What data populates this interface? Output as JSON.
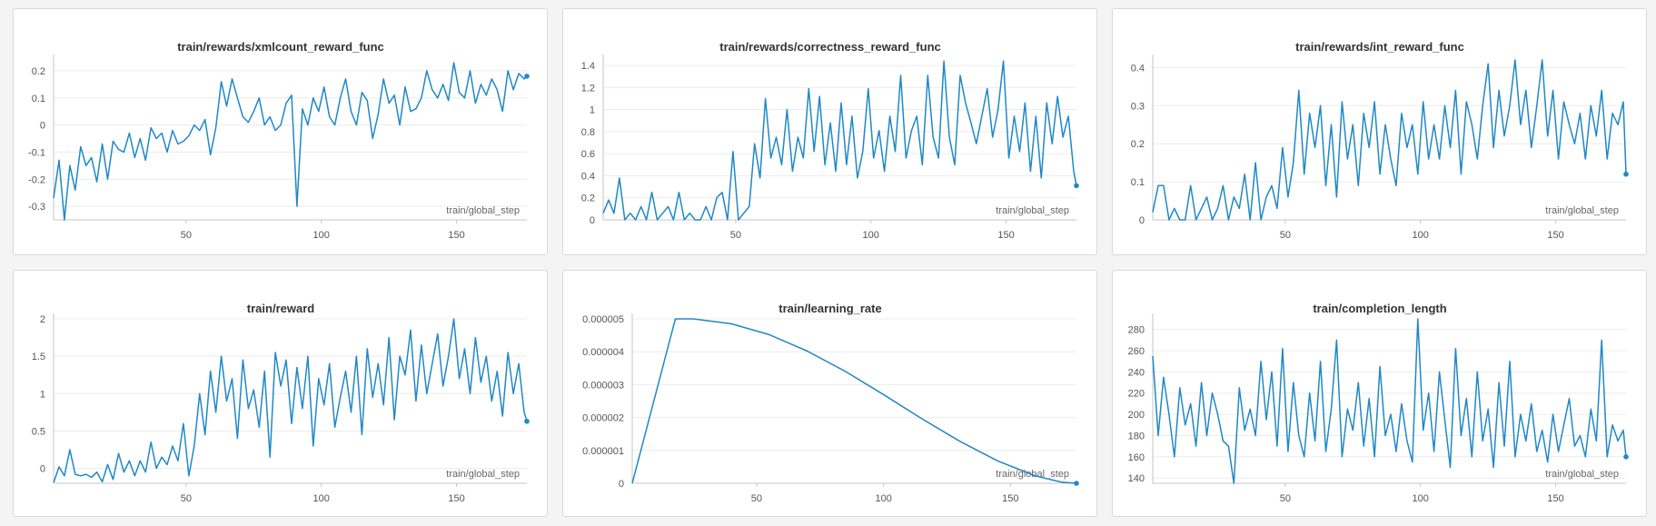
{
  "colors": {
    "line": "#1f88c7",
    "background": "#f4f4f4"
  },
  "chart_data": [
    {
      "type": "line",
      "title": "train/rewards/xmlcount_reward_func",
      "xlabel": "train/global_step",
      "xlim": [
        1,
        176
      ],
      "ylim": [
        -0.35,
        0.24
      ],
      "xticks": [
        50,
        100,
        150
      ],
      "yticks": [
        -0.3,
        -0.2,
        -0.1,
        0,
        0.1,
        0.2
      ],
      "ytick_labels": [
        "-0.3",
        "-0.2",
        "-0.1",
        "0",
        "0.1",
        "0.2"
      ],
      "grid": true,
      "legend": "none",
      "series": [
        {
          "x": [
            1,
            3,
            5,
            7,
            9,
            11,
            13,
            15,
            17,
            19,
            21,
            23,
            25,
            27,
            29,
            31,
            33,
            35,
            37,
            39,
            41,
            43,
            45,
            47,
            49,
            51,
            53,
            55,
            57,
            59,
            61,
            63,
            65,
            67,
            69,
            71,
            73,
            75,
            77,
            79,
            81,
            83,
            85,
            87,
            89,
            91,
            93,
            95,
            97,
            99,
            101,
            103,
            105,
            107,
            109,
            111,
            113,
            115,
            117,
            119,
            121,
            123,
            125,
            127,
            129,
            131,
            133,
            135,
            137,
            139,
            141,
            143,
            145,
            147,
            149,
            151,
            153,
            155,
            157,
            159,
            161,
            163,
            165,
            167,
            169,
            171,
            173,
            175,
            176
          ],
          "y": [
            -0.27,
            -0.13,
            -0.35,
            -0.15,
            -0.24,
            -0.08,
            -0.15,
            -0.12,
            -0.21,
            -0.07,
            -0.2,
            -0.06,
            -0.09,
            -0.1,
            -0.03,
            -0.12,
            -0.05,
            -0.13,
            -0.01,
            -0.05,
            -0.03,
            -0.1,
            -0.02,
            -0.07,
            -0.06,
            -0.04,
            0.0,
            -0.02,
            0.02,
            -0.11,
            -0.01,
            0.16,
            0.07,
            0.17,
            0.1,
            0.03,
            0.01,
            0.05,
            0.1,
            0.0,
            0.03,
            -0.02,
            0.0,
            0.08,
            0.11,
            -0.3,
            0.06,
            0.0,
            0.1,
            0.05,
            0.14,
            0.03,
            0.0,
            0.1,
            0.17,
            0.05,
            0.0,
            0.12,
            0.09,
            -0.05,
            0.04,
            0.17,
            0.08,
            0.11,
            0.0,
            0.14,
            0.05,
            0.06,
            0.1,
            0.2,
            0.13,
            0.1,
            0.15,
            0.09,
            0.23,
            0.12,
            0.1,
            0.2,
            0.08,
            0.15,
            0.11,
            0.17,
            0.13,
            0.05,
            0.2,
            0.13,
            0.19,
            0.17,
            0.18
          ]
        }
      ]
    },
    {
      "type": "line",
      "title": "train/rewards/correctness_reward_func",
      "xlabel": "train/global_step",
      "xlim": [
        1,
        176
      ],
      "ylim": [
        0,
        1.45
      ],
      "xticks": [
        50,
        100,
        150
      ],
      "yticks": [
        0,
        0.2,
        0.4,
        0.6,
        0.8,
        1.0,
        1.2,
        1.4
      ],
      "ytick_labels": [
        "0",
        "0.2",
        "0.4",
        "0.6",
        "0.8",
        "1",
        "1.2",
        "1.4"
      ],
      "grid": true,
      "legend": "none",
      "series": [
        {
          "x": [
            1,
            3,
            5,
            7,
            9,
            11,
            13,
            15,
            17,
            19,
            21,
            23,
            25,
            27,
            29,
            31,
            33,
            35,
            37,
            39,
            41,
            43,
            45,
            47,
            49,
            51,
            53,
            55,
            57,
            59,
            61,
            63,
            65,
            67,
            69,
            71,
            73,
            75,
            77,
            79,
            81,
            83,
            85,
            87,
            89,
            91,
            93,
            95,
            97,
            99,
            101,
            103,
            105,
            107,
            109,
            111,
            113,
            115,
            117,
            119,
            121,
            123,
            125,
            127,
            129,
            131,
            133,
            135,
            137,
            139,
            141,
            143,
            145,
            147,
            149,
            151,
            153,
            155,
            157,
            159,
            161,
            163,
            165,
            167,
            169,
            171,
            173,
            175,
            176
          ],
          "y": [
            0.06,
            0.18,
            0.06,
            0.38,
            0.0,
            0.06,
            0.0,
            0.12,
            0.0,
            0.25,
            0.0,
            0.06,
            0.12,
            0.0,
            0.25,
            0.0,
            0.06,
            0.0,
            0.0,
            0.12,
            0.0,
            0.2,
            0.25,
            0.0,
            0.62,
            0.0,
            0.06,
            0.12,
            0.69,
            0.38,
            1.1,
            0.56,
            0.75,
            0.5,
            1.0,
            0.44,
            0.75,
            0.56,
            1.19,
            0.62,
            1.12,
            0.5,
            0.88,
            0.44,
            1.06,
            0.5,
            0.94,
            0.38,
            0.62,
            1.19,
            0.56,
            0.81,
            0.44,
            0.94,
            0.62,
            1.31,
            0.56,
            0.81,
            0.94,
            0.5,
            1.31,
            0.75,
            0.56,
            1.44,
            0.75,
            0.5,
            1.31,
            1.06,
            0.88,
            0.69,
            0.94,
            1.19,
            0.75,
            1.0,
            1.44,
            0.56,
            0.94,
            0.62,
            1.06,
            0.44,
            0.94,
            0.38,
            1.06,
            0.69,
            1.12,
            0.75,
            0.94,
            0.44,
            0.31
          ]
        }
      ]
    },
    {
      "type": "line",
      "title": "train/rewards/int_reward_func",
      "xlabel": "train/global_step",
      "xlim": [
        1,
        176
      ],
      "ylim": [
        0,
        0.42
      ],
      "xticks": [
        50,
        100,
        150
      ],
      "yticks": [
        0,
        0.1,
        0.2,
        0.3,
        0.4
      ],
      "ytick_labels": [
        "0",
        "0.1",
        "0.2",
        "0.3",
        "0.4"
      ],
      "grid": true,
      "legend": "none",
      "series": [
        {
          "x": [
            1,
            3,
            5,
            7,
            9,
            11,
            13,
            15,
            17,
            19,
            21,
            23,
            25,
            27,
            29,
            31,
            33,
            35,
            37,
            39,
            41,
            43,
            45,
            47,
            49,
            51,
            53,
            55,
            57,
            59,
            61,
            63,
            65,
            67,
            69,
            71,
            73,
            75,
            77,
            79,
            81,
            83,
            85,
            87,
            89,
            91,
            93,
            95,
            97,
            99,
            101,
            103,
            105,
            107,
            109,
            111,
            113,
            115,
            117,
            119,
            121,
            123,
            125,
            127,
            129,
            131,
            133,
            135,
            137,
            139,
            141,
            143,
            145,
            147,
            149,
            151,
            153,
            155,
            157,
            159,
            161,
            163,
            165,
            167,
            169,
            171,
            173,
            175,
            176
          ],
          "y": [
            0.02,
            0.09,
            0.09,
            0.0,
            0.03,
            0.0,
            0.0,
            0.09,
            0.0,
            0.03,
            0.06,
            0.0,
            0.03,
            0.09,
            0.0,
            0.06,
            0.03,
            0.12,
            0.0,
            0.15,
            0.0,
            0.06,
            0.09,
            0.03,
            0.19,
            0.06,
            0.15,
            0.34,
            0.12,
            0.28,
            0.19,
            0.3,
            0.09,
            0.25,
            0.06,
            0.31,
            0.16,
            0.25,
            0.09,
            0.28,
            0.19,
            0.31,
            0.12,
            0.25,
            0.16,
            0.09,
            0.28,
            0.19,
            0.25,
            0.12,
            0.31,
            0.16,
            0.25,
            0.16,
            0.3,
            0.19,
            0.34,
            0.12,
            0.31,
            0.25,
            0.16,
            0.3,
            0.41,
            0.19,
            0.34,
            0.22,
            0.3,
            0.42,
            0.25,
            0.34,
            0.19,
            0.3,
            0.42,
            0.22,
            0.34,
            0.16,
            0.31,
            0.25,
            0.2,
            0.28,
            0.16,
            0.3,
            0.22,
            0.34,
            0.16,
            0.28,
            0.25,
            0.31,
            0.12
          ]
        }
      ]
    },
    {
      "type": "line",
      "title": "train/reward",
      "xlabel": "train/global_step",
      "xlim": [
        1,
        176
      ],
      "ylim": [
        -0.2,
        2.0
      ],
      "xticks": [
        50,
        100,
        150
      ],
      "yticks": [
        0,
        0.5,
        1.0,
        1.5,
        2.0
      ],
      "ytick_labels": [
        "0",
        "0.5",
        "1",
        "1.5",
        "2"
      ],
      "grid": true,
      "legend": "none",
      "series": [
        {
          "x": [
            1,
            3,
            5,
            7,
            9,
            11,
            13,
            15,
            17,
            19,
            21,
            23,
            25,
            27,
            29,
            31,
            33,
            35,
            37,
            39,
            41,
            43,
            45,
            47,
            49,
            51,
            53,
            55,
            57,
            59,
            61,
            63,
            65,
            67,
            69,
            71,
            73,
            75,
            77,
            79,
            81,
            83,
            85,
            87,
            89,
            91,
            93,
            95,
            97,
            99,
            101,
            103,
            105,
            107,
            109,
            111,
            113,
            115,
            117,
            119,
            121,
            123,
            125,
            127,
            129,
            131,
            133,
            135,
            137,
            139,
            141,
            143,
            145,
            147,
            149,
            151,
            153,
            155,
            157,
            159,
            161,
            163,
            165,
            167,
            169,
            171,
            173,
            175,
            176
          ],
          "y": [
            -0.19,
            0.02,
            -0.1,
            0.25,
            -0.08,
            -0.1,
            -0.08,
            -0.12,
            -0.05,
            -0.18,
            0.05,
            -0.15,
            0.2,
            -0.05,
            0.1,
            -0.1,
            0.1,
            -0.05,
            0.35,
            0.0,
            0.15,
            0.05,
            0.3,
            0.1,
            0.6,
            -0.1,
            0.3,
            1.0,
            0.45,
            1.3,
            0.75,
            1.5,
            0.9,
            1.2,
            0.4,
            1.45,
            0.8,
            1.05,
            0.55,
            1.3,
            0.15,
            1.55,
            1.1,
            1.45,
            0.6,
            1.35,
            0.8,
            1.5,
            0.3,
            1.2,
            0.85,
            1.4,
            0.55,
            0.95,
            1.3,
            0.75,
            1.5,
            0.45,
            1.6,
            0.95,
            1.4,
            0.85,
            1.75,
            0.65,
            1.5,
            1.25,
            1.85,
            0.9,
            1.65,
            1.0,
            1.4,
            1.8,
            1.1,
            1.5,
            2.0,
            1.2,
            1.6,
            1.0,
            1.75,
            1.15,
            1.5,
            0.9,
            1.3,
            0.7,
            1.55,
            1.0,
            1.4,
            0.75,
            0.63
          ]
        }
      ]
    },
    {
      "type": "line",
      "title": "train/learning_rate",
      "xlabel": "train/global_step",
      "xlim": [
        1,
        176
      ],
      "ylim": [
        0,
        5e-06
      ],
      "xticks": [
        50,
        100,
        150
      ],
      "yticks": [
        0,
        1e-06,
        2e-06,
        3e-06,
        4e-06,
        5e-06
      ],
      "ytick_labels": [
        "0",
        "0.000001",
        "0.000002",
        "0.000003",
        "0.000004",
        "0.000005"
      ],
      "grid": true,
      "legend": "none",
      "series": [
        {
          "x": [
            1,
            18,
            25,
            40,
            55,
            70,
            85,
            100,
            115,
            130,
            145,
            160,
            170,
            176
          ],
          "y": [
            0,
            5e-06,
            5e-06,
            4.85e-06,
            4.52e-06,
            4.02e-06,
            3.4e-06,
            2.7e-06,
            1.97e-06,
            1.28e-06,
            6.8e-07,
            2.2e-07,
            4e-08,
            0
          ]
        }
      ]
    },
    {
      "type": "line",
      "title": "train/completion_length",
      "xlabel": "train/global_step",
      "xlim": [
        1,
        176
      ],
      "ylim": [
        135,
        290
      ],
      "xticks": [
        50,
        100,
        150
      ],
      "yticks": [
        140,
        160,
        180,
        200,
        220,
        240,
        260,
        280
      ],
      "ytick_labels": [
        "140",
        "160",
        "180",
        "200",
        "220",
        "240",
        "260",
        "280"
      ],
      "grid": true,
      "legend": "none",
      "series": [
        {
          "x": [
            1,
            3,
            5,
            7,
            9,
            11,
            13,
            15,
            17,
            19,
            21,
            23,
            25,
            27,
            29,
            31,
            33,
            35,
            37,
            39,
            41,
            43,
            45,
            47,
            49,
            51,
            53,
            55,
            57,
            59,
            61,
            63,
            65,
            67,
            69,
            71,
            73,
            75,
            77,
            79,
            81,
            83,
            85,
            87,
            89,
            91,
            93,
            95,
            97,
            99,
            101,
            103,
            105,
            107,
            109,
            111,
            113,
            115,
            117,
            119,
            121,
            123,
            125,
            127,
            129,
            131,
            133,
            135,
            137,
            139,
            141,
            143,
            145,
            147,
            149,
            151,
            153,
            155,
            157,
            159,
            161,
            163,
            165,
            167,
            169,
            171,
            173,
            175,
            176
          ],
          "y": [
            255,
            180,
            235,
            200,
            160,
            225,
            190,
            210,
            170,
            230,
            180,
            220,
            200,
            175,
            170,
            135,
            225,
            185,
            205,
            180,
            250,
            195,
            240,
            170,
            262,
            165,
            230,
            180,
            160,
            220,
            175,
            250,
            165,
            205,
            270,
            160,
            205,
            185,
            230,
            170,
            215,
            160,
            245,
            180,
            200,
            165,
            210,
            175,
            155,
            290,
            185,
            220,
            165,
            240,
            195,
            150,
            262,
            180,
            215,
            160,
            240,
            175,
            205,
            150,
            230,
            170,
            250,
            160,
            200,
            175,
            210,
            165,
            185,
            155,
            200,
            165,
            190,
            215,
            170,
            180,
            160,
            205,
            175,
            270,
            160,
            190,
            175,
            185,
            160
          ]
        }
      ]
    }
  ]
}
